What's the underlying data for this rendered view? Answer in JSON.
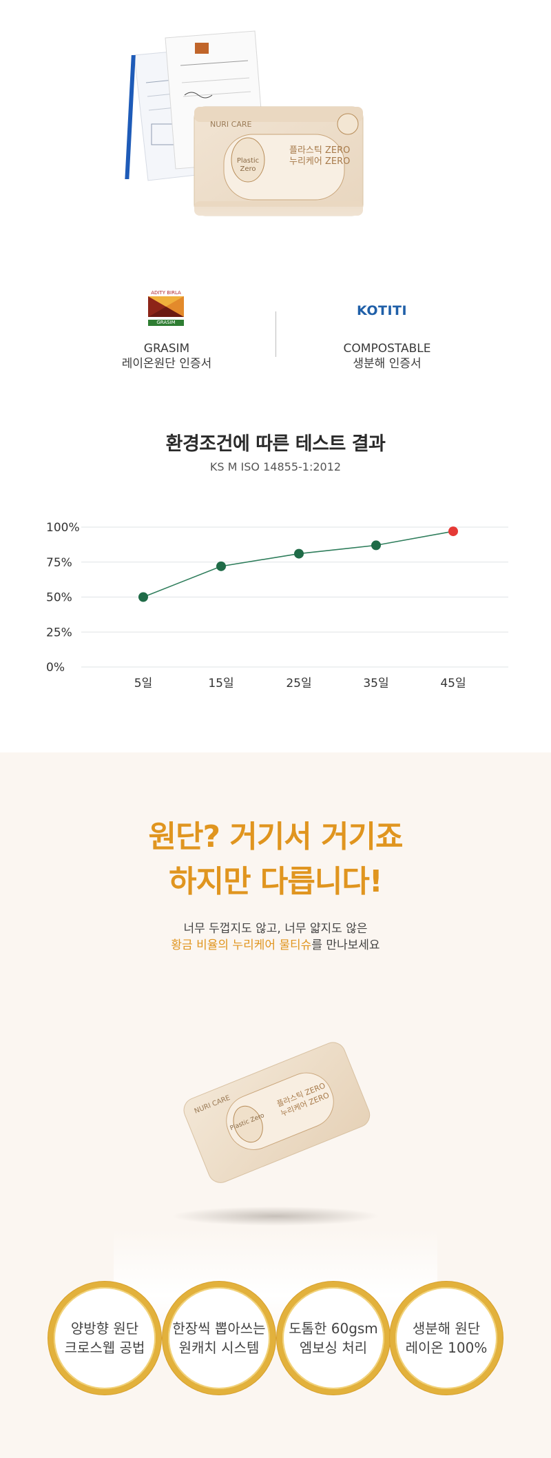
{
  "certificates": {
    "left": {
      "logo_text": "ADITY BIRLA",
      "logo_band": "GRASIM",
      "line1": "GRASIM",
      "line2": "레이온원단 인증서"
    },
    "right": {
      "logo_text": "KOTITI",
      "line1": "COMPOSTABLE",
      "line2": "생분해 인증서"
    }
  },
  "test_section": {
    "title": "환경조건에 따른 테스트 결과",
    "subtitle": "KS M ISO 14855-1:2012"
  },
  "chart_data": {
    "type": "line",
    "title": "",
    "xlabel": "",
    "ylabel": "",
    "categories": [
      "5일",
      "15일",
      "25일",
      "35일",
      "45일"
    ],
    "series": [
      {
        "values": [
          50,
          72,
          81,
          87,
          97
        ]
      }
    ],
    "ylim": [
      0,
      100
    ],
    "yticks": [
      "0%",
      "25%",
      "50%",
      "75%",
      "100%"
    ],
    "grid": true,
    "colors": {
      "line": "#2e7d5b",
      "point": "#1f6b47",
      "last_point": "#e53935",
      "grid": "#dfe3e6"
    }
  },
  "fabric": {
    "headline_line1": "원단? 거기서 거기죠",
    "headline_line2": "하지만 다릅니다!",
    "desc_line1": "너무 두껍지도 않고, 너무 얇지도 않은",
    "desc_line2_accent": "황금 비율의 누리케어 물티슈",
    "desc_line2_rest": "를 만나보세요"
  },
  "product": {
    "brand": "NURI CARE",
    "badge": "Plastic Zero",
    "name_line1": "플라스틱 ZERO",
    "name_line2": "누리케어 ZERO"
  },
  "features": [
    {
      "line1": "양방향 원단",
      "line2": "크로스웹 공법"
    },
    {
      "line1": "한장씩 뽑아쓰는",
      "line2": "원캐치 시스템"
    },
    {
      "line1": "도톰한 60gsm",
      "line2": "엠보싱 처리"
    },
    {
      "line1": "생분해 원단",
      "line2": "레이온 100%"
    }
  ],
  "colors": {
    "accent": "#e0951f",
    "beige_bg": "#fbf6f1",
    "ring": "#e2b13c"
  }
}
